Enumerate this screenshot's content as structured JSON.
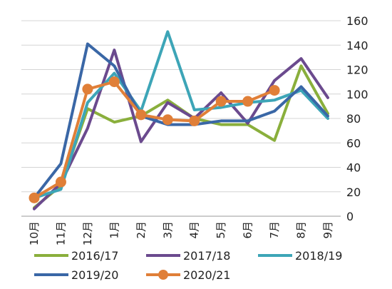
{
  "chart_data": {
    "type": "line",
    "categories": [
      "10月",
      "11月",
      "12月",
      "1月",
      "2月",
      "3月",
      "4月",
      "5月",
      "6月",
      "7月",
      "8月",
      "9月"
    ],
    "series": [
      {
        "name": "2016/17",
        "color": "#8aaf3c",
        "values": [
          7,
          25,
          88,
          77,
          82,
          95,
          80,
          75,
          75,
          62,
          123,
          84
        ],
        "markers": false
      },
      {
        "name": "2017/18",
        "color": "#6b4a8e",
        "values": [
          6,
          27,
          72,
          136,
          61,
          93,
          80,
          101,
          76,
          111,
          129,
          97
        ],
        "markers": false
      },
      {
        "name": "2018/19",
        "color": "#3da5b7",
        "values": [
          15,
          22,
          93,
          117,
          86,
          151,
          87,
          89,
          93,
          95,
          103,
          80
        ],
        "markers": false
      },
      {
        "name": "2019/20",
        "color": "#3a67a6",
        "values": [
          15,
          43,
          141,
          123,
          82,
          75,
          75,
          78,
          78,
          86,
          106,
          82
        ],
        "markers": false
      },
      {
        "name": "2020/21",
        "color": "#e07f38",
        "values": [
          15,
          28,
          104,
          110,
          83,
          79,
          78,
          94,
          94,
          103,
          null,
          null
        ],
        "markers": true
      }
    ],
    "ylim": [
      0,
      160
    ],
    "yticks": [
      0,
      20,
      40,
      60,
      80,
      100,
      120,
      140,
      160
    ],
    "y_axis_side": "right",
    "grid": true,
    "legend_position": "bottom"
  }
}
